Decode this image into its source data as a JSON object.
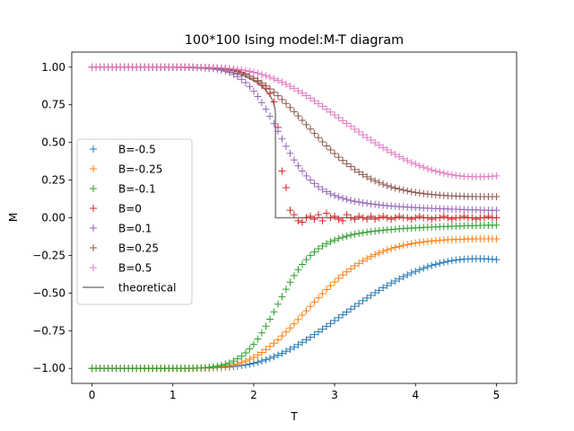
{
  "chart_data": {
    "type": "scatter",
    "title": "100*100 Ising model:M-T diagram",
    "xlabel": "T",
    "ylabel": "M",
    "xlim": [
      -0.25,
      5.25
    ],
    "ylim": [
      -1.1,
      1.1
    ],
    "xticks": [
      "0",
      "1",
      "2",
      "3",
      "4",
      "5"
    ],
    "yticks": [
      "−1.00",
      "−0.75",
      "−0.50",
      "−0.25",
      "0.00",
      "0.25",
      "0.50",
      "0.75",
      "1.00"
    ],
    "grid": false,
    "legend_position": "center-left",
    "marker": "+",
    "x": [
      0.0,
      0.05,
      0.1,
      0.15,
      0.2,
      0.25,
      0.3,
      0.35,
      0.4,
      0.45,
      0.5,
      0.55,
      0.6,
      0.65,
      0.7,
      0.75,
      0.8,
      0.85,
      0.9,
      0.95,
      1.0,
      1.05,
      1.1,
      1.15,
      1.2,
      1.25,
      1.3,
      1.35,
      1.4,
      1.45,
      1.5,
      1.55,
      1.6,
      1.65,
      1.7,
      1.75,
      1.8,
      1.85,
      1.9,
      1.95,
      2.0,
      2.05,
      2.1,
      2.15,
      2.2,
      2.25,
      2.3,
      2.35,
      2.4,
      2.45,
      2.5,
      2.55,
      2.6,
      2.65,
      2.7,
      2.75,
      2.8,
      2.85,
      2.9,
      2.95,
      3.0,
      3.05,
      3.1,
      3.15,
      3.2,
      3.25,
      3.3,
      3.35,
      3.4,
      3.45,
      3.5,
      3.55,
      3.6,
      3.65,
      3.7,
      3.75,
      3.8,
      3.85,
      3.9,
      3.95,
      4.0,
      4.05,
      4.1,
      4.15,
      4.2,
      4.25,
      4.3,
      4.35,
      4.4,
      4.45,
      4.5,
      4.55,
      4.6,
      4.65,
      4.7,
      4.75,
      4.8,
      4.85,
      4.9,
      4.95,
      5.0
    ],
    "series": [
      {
        "name": "B=-0.5",
        "color": "#1f77b4",
        "values": [
          -1.0,
          -1.0,
          -1.0,
          -1.0,
          -1.0,
          -1.0,
          -1.0,
          -1.0,
          -1.0,
          -1.0,
          -1.0,
          -1.0,
          -1.0,
          -1.0,
          -1.0,
          -1.0,
          -1.0,
          -1.0,
          -1.0,
          -1.0,
          -1.0,
          -1.0,
          -1.0,
          -1.0,
          -1.0,
          -1.0,
          -0.999,
          -0.999,
          -0.999,
          -0.998,
          -0.997,
          -0.996,
          -0.995,
          -0.993,
          -0.991,
          -0.988,
          -0.985,
          -0.981,
          -0.977,
          -0.972,
          -0.966,
          -0.959,
          -0.951,
          -0.943,
          -0.933,
          -0.923,
          -0.912,
          -0.9,
          -0.887,
          -0.873,
          -0.859,
          -0.843,
          -0.827,
          -0.811,
          -0.794,
          -0.776,
          -0.758,
          -0.74,
          -0.721,
          -0.702,
          -0.683,
          -0.664,
          -0.645,
          -0.626,
          -0.607,
          -0.588,
          -0.57,
          -0.551,
          -0.533,
          -0.516,
          -0.498,
          -0.482,
          -0.465,
          -0.45,
          -0.434,
          -0.42,
          -0.406,
          -0.392,
          -0.379,
          -0.367,
          -0.356,
          -0.345,
          -0.335,
          -0.326,
          -0.317,
          -0.309,
          -0.302,
          -0.296,
          -0.29,
          -0.285,
          -0.281,
          -0.278,
          -0.275,
          -0.274,
          -0.273,
          -0.272,
          -0.272,
          -0.273,
          -0.274,
          -0.276,
          -0.278
        ]
      },
      {
        "name": "B=-0.25",
        "color": "#ff7f0e",
        "values": [
          -1.0,
          -1.0,
          -1.0,
          -1.0,
          -1.0,
          -1.0,
          -1.0,
          -1.0,
          -1.0,
          -1.0,
          -1.0,
          -1.0,
          -1.0,
          -1.0,
          -1.0,
          -1.0,
          -1.0,
          -1.0,
          -1.0,
          -1.0,
          -1.0,
          -1.0,
          -1.0,
          -1.0,
          -1.0,
          -1.0,
          -0.999,
          -0.999,
          -0.998,
          -0.997,
          -0.996,
          -0.994,
          -0.991,
          -0.987,
          -0.982,
          -0.977,
          -0.97,
          -0.961,
          -0.951,
          -0.939,
          -0.926,
          -0.911,
          -0.894,
          -0.875,
          -0.855,
          -0.833,
          -0.81,
          -0.785,
          -0.759,
          -0.732,
          -0.704,
          -0.676,
          -0.647,
          -0.618,
          -0.589,
          -0.56,
          -0.532,
          -0.504,
          -0.477,
          -0.451,
          -0.426,
          -0.402,
          -0.38,
          -0.359,
          -0.339,
          -0.32,
          -0.303,
          -0.287,
          -0.272,
          -0.258,
          -0.245,
          -0.234,
          -0.223,
          -0.213,
          -0.205,
          -0.197,
          -0.19,
          -0.183,
          -0.178,
          -0.172,
          -0.168,
          -0.164,
          -0.16,
          -0.157,
          -0.154,
          -0.152,
          -0.15,
          -0.148,
          -0.146,
          -0.145,
          -0.144,
          -0.143,
          -0.142,
          -0.141,
          -0.141,
          -0.14,
          -0.14,
          -0.14,
          -0.14,
          -0.14,
          -0.14
        ]
      },
      {
        "name": "B=-0.1",
        "color": "#2ca02c",
        "values": [
          -1.0,
          -1.0,
          -1.0,
          -1.0,
          -1.0,
          -1.0,
          -1.0,
          -1.0,
          -1.0,
          -1.0,
          -1.0,
          -1.0,
          -1.0,
          -1.0,
          -1.0,
          -1.0,
          -1.0,
          -1.0,
          -1.0,
          -1.0,
          -1.0,
          -1.0,
          -1.0,
          -1.0,
          -0.999,
          -0.999,
          -0.998,
          -0.997,
          -0.995,
          -0.993,
          -0.99,
          -0.986,
          -0.98,
          -0.973,
          -0.964,
          -0.952,
          -0.937,
          -0.919,
          -0.897,
          -0.871,
          -0.84,
          -0.805,
          -0.765,
          -0.721,
          -0.674,
          -0.625,
          -0.574,
          -0.524,
          -0.475,
          -0.428,
          -0.384,
          -0.345,
          -0.31,
          -0.278,
          -0.251,
          -0.227,
          -0.206,
          -0.188,
          -0.173,
          -0.159,
          -0.148,
          -0.138,
          -0.129,
          -0.122,
          -0.115,
          -0.109,
          -0.104,
          -0.1,
          -0.096,
          -0.092,
          -0.089,
          -0.086,
          -0.083,
          -0.08,
          -0.078,
          -0.076,
          -0.074,
          -0.072,
          -0.07,
          -0.069,
          -0.067,
          -0.066,
          -0.064,
          -0.063,
          -0.062,
          -0.061,
          -0.06,
          -0.059,
          -0.058,
          -0.057,
          -0.056,
          -0.055,
          -0.054,
          -0.053,
          -0.053,
          -0.052,
          -0.051,
          -0.05,
          -0.05,
          -0.049,
          -0.049
        ]
      },
      {
        "name": "B=0",
        "color": "#d62728",
        "values": [
          1.0,
          1.0,
          1.0,
          1.0,
          1.0,
          1.0,
          1.0,
          1.0,
          1.0,
          1.0,
          1.0,
          1.0,
          1.0,
          1.0,
          1.0,
          1.0,
          1.0,
          1.0,
          1.0,
          1.0,
          1.0,
          1.0,
          1.0,
          1.0,
          1.0,
          1.0,
          0.999,
          0.999,
          0.998,
          0.997,
          0.996,
          0.994,
          0.992,
          0.989,
          0.985,
          0.98,
          0.974,
          0.966,
          0.955,
          0.94,
          0.925,
          0.905,
          0.88,
          0.86,
          0.825,
          0.77,
          0.6,
          0.31,
          0.2,
          0.05,
          0.02,
          -0.02,
          -0.03,
          0.0,
          0.01,
          -0.01,
          0.02,
          -0.02,
          0.03,
          0.0,
          0.01,
          -0.01,
          -0.02,
          0.02,
          0.0,
          -0.01,
          0.01,
          0.0,
          -0.01,
          0.01,
          -0.01,
          0.0,
          0.01,
          0.0,
          -0.01,
          0.0,
          0.01,
          0.0,
          0.0,
          -0.01,
          0.0,
          0.01,
          0.0,
          0.0,
          -0.01,
          0.0,
          0.0,
          0.01,
          0.0,
          -0.01,
          0.0,
          0.0,
          0.01,
          0.0,
          0.0,
          -0.01,
          0.0,
          0.0,
          0.01,
          0.0,
          0.0
        ]
      },
      {
        "name": "B=0.1",
        "color": "#9467bd",
        "values": [
          1.0,
          1.0,
          1.0,
          1.0,
          1.0,
          1.0,
          1.0,
          1.0,
          1.0,
          1.0,
          1.0,
          1.0,
          1.0,
          1.0,
          1.0,
          1.0,
          1.0,
          1.0,
          1.0,
          1.0,
          1.0,
          1.0,
          1.0,
          1.0,
          0.999,
          0.999,
          0.998,
          0.997,
          0.995,
          0.993,
          0.99,
          0.986,
          0.98,
          0.973,
          0.964,
          0.952,
          0.937,
          0.919,
          0.897,
          0.871,
          0.84,
          0.805,
          0.765,
          0.721,
          0.674,
          0.625,
          0.574,
          0.524,
          0.475,
          0.428,
          0.384,
          0.345,
          0.31,
          0.278,
          0.251,
          0.227,
          0.206,
          0.188,
          0.173,
          0.159,
          0.148,
          0.138,
          0.129,
          0.122,
          0.115,
          0.109,
          0.104,
          0.1,
          0.096,
          0.092,
          0.089,
          0.086,
          0.083,
          0.08,
          0.078,
          0.076,
          0.074,
          0.072,
          0.07,
          0.069,
          0.067,
          0.066,
          0.064,
          0.063,
          0.062,
          0.061,
          0.06,
          0.059,
          0.058,
          0.057,
          0.056,
          0.055,
          0.054,
          0.053,
          0.053,
          0.052,
          0.051,
          0.05,
          0.05,
          0.049,
          0.049
        ]
      },
      {
        "name": "B=0.25",
        "color": "#8c564b",
        "values": [
          1.0,
          1.0,
          1.0,
          1.0,
          1.0,
          1.0,
          1.0,
          1.0,
          1.0,
          1.0,
          1.0,
          1.0,
          1.0,
          1.0,
          1.0,
          1.0,
          1.0,
          1.0,
          1.0,
          1.0,
          1.0,
          1.0,
          1.0,
          1.0,
          1.0,
          1.0,
          0.999,
          0.999,
          0.998,
          0.997,
          0.996,
          0.994,
          0.991,
          0.987,
          0.982,
          0.977,
          0.97,
          0.961,
          0.951,
          0.939,
          0.926,
          0.911,
          0.894,
          0.875,
          0.855,
          0.833,
          0.81,
          0.785,
          0.759,
          0.732,
          0.704,
          0.676,
          0.647,
          0.618,
          0.589,
          0.56,
          0.532,
          0.504,
          0.477,
          0.451,
          0.426,
          0.402,
          0.38,
          0.359,
          0.339,
          0.32,
          0.303,
          0.287,
          0.272,
          0.258,
          0.245,
          0.234,
          0.223,
          0.213,
          0.205,
          0.197,
          0.19,
          0.183,
          0.178,
          0.172,
          0.168,
          0.164,
          0.16,
          0.157,
          0.154,
          0.152,
          0.15,
          0.148,
          0.146,
          0.145,
          0.144,
          0.143,
          0.142,
          0.141,
          0.141,
          0.14,
          0.14,
          0.14,
          0.14,
          0.14,
          0.14
        ]
      },
      {
        "name": "B=0.5",
        "color": "#e377c2",
        "values": [
          1.0,
          1.0,
          1.0,
          1.0,
          1.0,
          1.0,
          1.0,
          1.0,
          1.0,
          1.0,
          1.0,
          1.0,
          1.0,
          1.0,
          1.0,
          1.0,
          1.0,
          1.0,
          1.0,
          1.0,
          1.0,
          1.0,
          1.0,
          1.0,
          1.0,
          1.0,
          0.999,
          0.999,
          0.999,
          0.998,
          0.997,
          0.996,
          0.995,
          0.993,
          0.991,
          0.988,
          0.985,
          0.981,
          0.977,
          0.972,
          0.966,
          0.959,
          0.951,
          0.943,
          0.933,
          0.923,
          0.912,
          0.9,
          0.887,
          0.873,
          0.859,
          0.843,
          0.827,
          0.811,
          0.794,
          0.776,
          0.758,
          0.74,
          0.721,
          0.702,
          0.683,
          0.664,
          0.645,
          0.626,
          0.607,
          0.588,
          0.57,
          0.551,
          0.533,
          0.516,
          0.498,
          0.482,
          0.465,
          0.45,
          0.434,
          0.42,
          0.406,
          0.392,
          0.379,
          0.367,
          0.356,
          0.345,
          0.335,
          0.326,
          0.317,
          0.309,
          0.302,
          0.296,
          0.29,
          0.285,
          0.281,
          0.278,
          0.275,
          0.274,
          0.273,
          0.272,
          0.272,
          0.273,
          0.274,
          0.276,
          0.278
        ]
      }
    ],
    "theoretical": {
      "name": "theoretical",
      "color": "#808080",
      "x": [
        0.0,
        0.6,
        0.8,
        1.0,
        1.2,
        1.4,
        1.5,
        1.6,
        1.7,
        1.8,
        1.9,
        2.0,
        2.05,
        2.1,
        2.15,
        2.2,
        2.22,
        2.24,
        2.25,
        2.26,
        2.265,
        2.268,
        2.269,
        2.269,
        5.0
      ],
      "y": [
        1.0,
        1.0,
        0.9999,
        0.9993,
        0.9972,
        0.992,
        0.9871,
        0.9798,
        0.9698,
        0.9562,
        0.9373,
        0.9113,
        0.8944,
        0.8736,
        0.8471,
        0.8112,
        0.7924,
        0.768,
        0.7526,
        0.7315,
        0.712,
        0.6895,
        0.65,
        0.0,
        0.0
      ]
    }
  }
}
